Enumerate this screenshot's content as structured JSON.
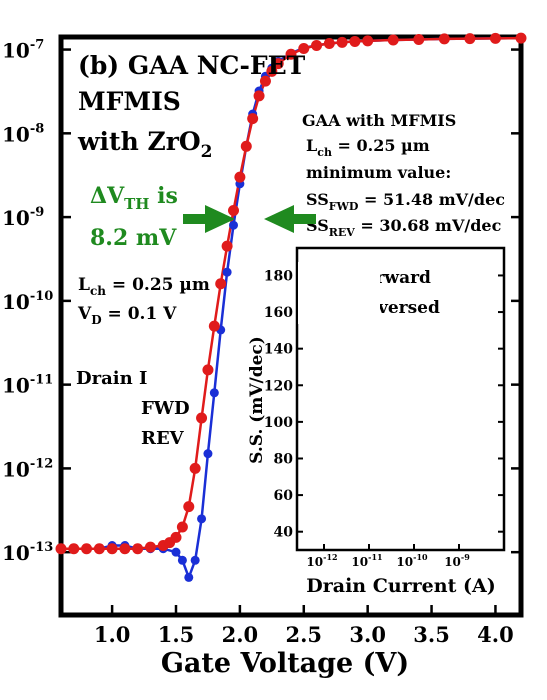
{
  "chart_data": {
    "type": "line",
    "title_lines": [
      "(b) GAA NC-FET",
      "MFMIS",
      "with ZrO"
    ],
    "title_sub": "2",
    "xlabel": "Gate Voltage (V)",
    "xlim": [
      0.6,
      4.2
    ],
    "xticks": [
      1.0,
      1.5,
      2.0,
      2.5,
      3.0,
      3.5,
      4.0
    ],
    "ylim_log10": [
      -13.75,
      -6.85
    ],
    "yticks_log10": [
      -13,
      -12,
      -11,
      -10,
      -9,
      -8,
      -7
    ],
    "scale": "log",
    "series": [
      {
        "name": "FWD",
        "color": "#1a2fd6",
        "x": [
          0.6,
          0.7,
          0.8,
          0.9,
          1.0,
          1.1,
          1.2,
          1.3,
          1.4,
          1.5,
          1.55,
          1.6,
          1.65,
          1.7,
          1.75,
          1.8,
          1.85,
          1.9,
          1.95,
          2.0,
          2.05,
          2.1,
          2.15,
          2.2,
          2.25,
          2.3,
          2.4,
          2.5,
          2.6,
          2.7,
          2.8,
          2.9,
          3.0,
          3.2,
          3.4,
          3.6,
          3.8,
          4.0,
          4.2
        ],
        "y": [
          1.1e-13,
          1.1e-13,
          1.1e-13,
          1.1e-13,
          1.2e-13,
          1.2e-13,
          1.1e-13,
          1.1e-13,
          1.1e-13,
          1e-13,
          8e-14,
          5e-14,
          8e-14,
          2.5e-13,
          1.5e-12,
          8e-12,
          4.5e-11,
          2.2e-10,
          8e-10,
          2.5e-09,
          7e-09,
          1.7e-08,
          3.2e-08,
          4.8e-08,
          6e-08,
          7.2e-08,
          9e-08,
          1.05e-07,
          1.12e-07,
          1.18e-07,
          1.22e-07,
          1.25e-07,
          1.27e-07,
          1.3e-07,
          1.32e-07,
          1.34e-07,
          1.35e-07,
          1.36e-07,
          1.37e-07
        ]
      },
      {
        "name": "REV",
        "color": "#e01b1b",
        "x": [
          0.6,
          0.7,
          0.8,
          0.9,
          1.0,
          1.1,
          1.2,
          1.3,
          1.4,
          1.45,
          1.5,
          1.55,
          1.6,
          1.65,
          1.7,
          1.75,
          1.8,
          1.85,
          1.9,
          1.95,
          2.0,
          2.05,
          2.1,
          2.15,
          2.2,
          2.25,
          2.3,
          2.4,
          2.5,
          2.6,
          2.7,
          2.8,
          2.9,
          3.0,
          3.2,
          3.4,
          3.6,
          3.8,
          4.0,
          4.2
        ],
        "y": [
          1.1e-13,
          1.1e-13,
          1.1e-13,
          1.1e-13,
          1.1e-13,
          1.1e-13,
          1.1e-13,
          1.15e-13,
          1.2e-13,
          1.3e-13,
          1.5e-13,
          2e-13,
          3.5e-13,
          1e-12,
          4e-12,
          1.5e-11,
          5e-11,
          1.6e-10,
          4.5e-10,
          1.2e-09,
          3e-09,
          7e-09,
          1.5e-08,
          2.8e-08,
          4.2e-08,
          5.5e-08,
          6.8e-08,
          8.8e-08,
          1.03e-07,
          1.12e-07,
          1.18e-07,
          1.22e-07,
          1.25e-07,
          1.27e-07,
          1.3e-07,
          1.32e-07,
          1.34e-07,
          1.35e-07,
          1.36e-07,
          1.37e-07
        ]
      }
    ],
    "annotations": {
      "gaa_lines": [
        "GAA with MFMIS",
        "L",
        "ch",
        " = 0.25 µm",
        "minimum value:",
        "SS",
        "FWD",
        " = 51.48 mV/dec",
        "SS",
        "REV",
        " = 30.68 mV/dec"
      ],
      "dvth": [
        "ΔV",
        "TH",
        " is",
        "8.2 mV"
      ],
      "lch_left": [
        "L",
        "ch",
        " = 0.25 µm"
      ],
      "vd": [
        "V",
        "D",
        "  = 0.1 V"
      ],
      "drain": "Drain I",
      "fwd": "FWD",
      "rev": "REV"
    },
    "inset": {
      "ylabel": "S.S. (mV/dec)",
      "xlabel": "Drain Current (A)",
      "yticks": [
        40,
        60,
        80,
        100,
        120,
        140,
        160,
        180
      ],
      "ylim": [
        30,
        195
      ],
      "xticks_log10": [
        -12,
        -11,
        -10,
        -9
      ],
      "xlim_log10": [
        -12.6,
        -8.0
      ],
      "legend": [
        "Forward",
        "Reversed"
      ]
    }
  },
  "ytick_labels": [
    {
      "base": "10",
      "exp": "-7"
    },
    {
      "base": "10",
      "exp": "-8"
    },
    {
      "base": "10",
      "exp": "-9"
    },
    {
      "base": "10",
      "exp": "-10"
    },
    {
      "base": "10",
      "exp": "-11"
    },
    {
      "base": "10",
      "exp": "-12"
    },
    {
      "base": "10",
      "exp": "-13"
    }
  ],
  "xtick_labels": [
    "1.0",
    "1.5",
    "2.0",
    "2.5",
    "3.0",
    "3.5",
    "4.0"
  ],
  "inset_xtick_labels": [
    {
      "base": "10",
      "exp": "-12"
    },
    {
      "base": "10",
      "exp": "-11"
    },
    {
      "base": "10",
      "exp": "-10"
    },
    {
      "base": "10",
      "exp": "-9"
    }
  ],
  "colors": {
    "green": "#1f8a1f",
    "fwd": "#1a2fd6",
    "rev": "#e01b1b"
  }
}
